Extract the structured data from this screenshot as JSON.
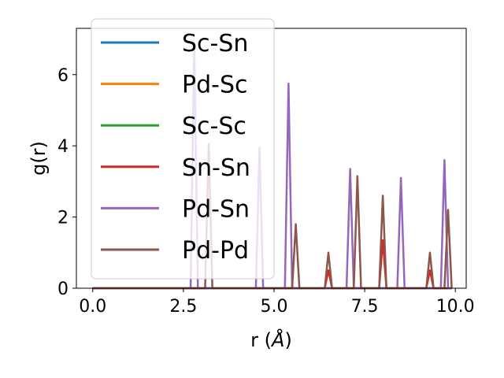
{
  "chart_data": {
    "type": "line",
    "xlabel": "r (",
    "xlabel_unit": "Å",
    "xlabel_close": ")",
    "ylabel": "g(r)",
    "xlim": [
      -0.45,
      10.3
    ],
    "ylim": [
      0,
      7.3
    ],
    "xticks": [
      0.0,
      2.5,
      5.0,
      7.5,
      10.0
    ],
    "xtick_labels": [
      "0.0",
      "2.5",
      "5.0",
      "7.5",
      "10.0"
    ],
    "yticks": [
      0,
      2,
      4,
      6
    ],
    "ytick_labels": [
      "0",
      "2",
      "4",
      "6"
    ],
    "grid": false,
    "legend_position": "upper-left",
    "peak_half_width": 0.1,
    "x_range": [
      0.0,
      9.9
    ],
    "series": [
      {
        "name": "Sc-Sn",
        "color": "#1f77b4",
        "peaks": []
      },
      {
        "name": "Pd-Sc",
        "color": "#ff7f0e",
        "peaks": []
      },
      {
        "name": "Sc-Sc",
        "color": "#2ca02c",
        "peaks": []
      },
      {
        "name": "Sn-Sn",
        "color": "#d62728",
        "peaks": [
          [
            6.5,
            0.5
          ],
          [
            8.0,
            1.35
          ],
          [
            9.3,
            0.5
          ]
        ]
      },
      {
        "name": "Pd-Sn",
        "color": "#9467bd",
        "peaks": [
          [
            2.8,
            6.9
          ],
          [
            4.6,
            3.95
          ],
          [
            5.4,
            5.75
          ],
          [
            7.1,
            3.35
          ],
          [
            8.5,
            3.1
          ],
          [
            9.7,
            3.6
          ]
        ]
      },
      {
        "name": "Pd-Pd",
        "color": "#8c564b",
        "peaks": [
          [
            3.2,
            4.05
          ],
          [
            5.6,
            1.8
          ],
          [
            6.5,
            1.0
          ],
          [
            7.3,
            3.15
          ],
          [
            8.0,
            2.6
          ],
          [
            9.3,
            1.0
          ],
          [
            9.8,
            2.2
          ]
        ]
      }
    ]
  }
}
